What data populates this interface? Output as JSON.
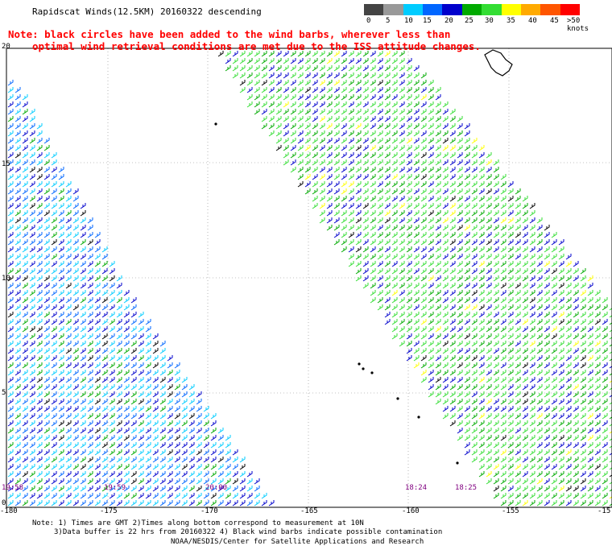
{
  "title": "Rapidscat Winds(12.5KM) 20160322 descending",
  "notes": [
    "Note: black circles have been added to the wind barbs, wherever less than",
    "optimal wind retrieval conditions are met due to the ISS attitude changes."
  ],
  "color_scale": {
    "colors": [
      "#444444",
      "#999999",
      "#00ccff",
      "#0066ff",
      "#0000cc",
      "#00aa00",
      "#33dd33",
      "#ffff00",
      "#ffaa00",
      "#ff5500",
      "#ff0000",
      "#aa0000",
      "#773300",
      "#cc55aa",
      "#cc00ff",
      "#6600aa",
      "#330066"
    ],
    "labels": [
      "0",
      "5",
      "10",
      "15",
      "20",
      "25",
      "30",
      "35",
      "40",
      "45",
      ">50 knots"
    ]
  },
  "x_axis": {
    "labels": [
      "-180",
      "-175",
      "-170",
      "-165",
      "-160",
      "-155",
      "-15"
    ]
  },
  "y_axis": {
    "labels": [
      "20",
      "15",
      "10",
      "5",
      "0"
    ]
  },
  "pass_times": [
    "19:58",
    "19:59",
    "20:00",
    "18:24",
    "18:25"
  ],
  "footer": [
    "Note: 1) Times are GMT 2)Times along bottom correspond to measurement at 10N",
    "3)Data buffer is 22 hrs from 20160322 4) Black wind barbs indicate possible contamination",
    "NOAA/NESDIS/Center for Satellite Applications and Research"
  ]
}
